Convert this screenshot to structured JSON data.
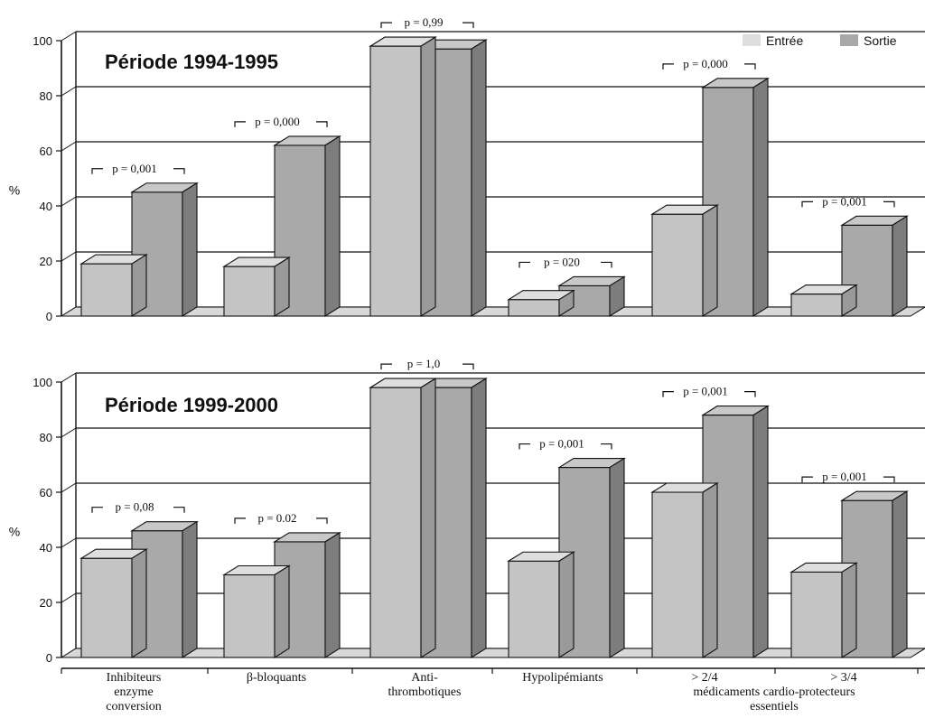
{
  "legend": {
    "entree": "Entrée",
    "sortie": "Sortie"
  },
  "colors": {
    "entree": "#c4c4c4",
    "entree_top": "#dedede",
    "entree_side": "#9a9a9a",
    "sortie": "#a9a9a9",
    "sortie_top": "#c8c8c8",
    "sortie_side": "#7d7d7d",
    "floor": "#d8d8d8",
    "axis": "#111111"
  },
  "categories_text": [
    [
      "Inhibiteurs",
      "enzyme",
      "conversion"
    ],
    [
      "β-bloquants"
    ],
    [
      "Anti-",
      "thrombotiques"
    ],
    [
      "Hypolipémiants"
    ],
    [
      "> 2/4"
    ],
    [
      "> 3/4"
    ]
  ],
  "category_footnote": [
    "médicaments cardio-protecteurs",
    "essentiels"
  ],
  "chart_data": [
    {
      "type": "bar",
      "title": "Période 1994-1995",
      "ylabel": "%",
      "ylim": [
        0,
        100
      ],
      "yticks": [
        0,
        20,
        40,
        60,
        80,
        100
      ],
      "series": [
        {
          "name": "Entrée",
          "values": [
            19,
            18,
            98,
            6,
            37,
            8
          ]
        },
        {
          "name": "Sortie",
          "values": [
            45,
            62,
            97,
            11,
            83,
            33
          ]
        }
      ],
      "annotations": [
        "p = 0,001",
        "p = 0,000",
        "p = 0,99",
        "p = 020",
        "p = 0,000",
        "p = 0,001"
      ]
    },
    {
      "type": "bar",
      "title": "Période 1999-2000",
      "ylabel": "%",
      "ylim": [
        0,
        100
      ],
      "yticks": [
        0,
        20,
        40,
        60,
        80,
        100
      ],
      "series": [
        {
          "name": "Entrée",
          "values": [
            36,
            30,
            98,
            35,
            60,
            31
          ]
        },
        {
          "name": "Sortie",
          "values": [
            46,
            42,
            98,
            69,
            88,
            57
          ]
        }
      ],
      "annotations": [
        "p = 0,08",
        "p = 0.02",
        "p = 1,0",
        "p = 0,001",
        "p = 0,001",
        "p = 0,001"
      ]
    }
  ]
}
